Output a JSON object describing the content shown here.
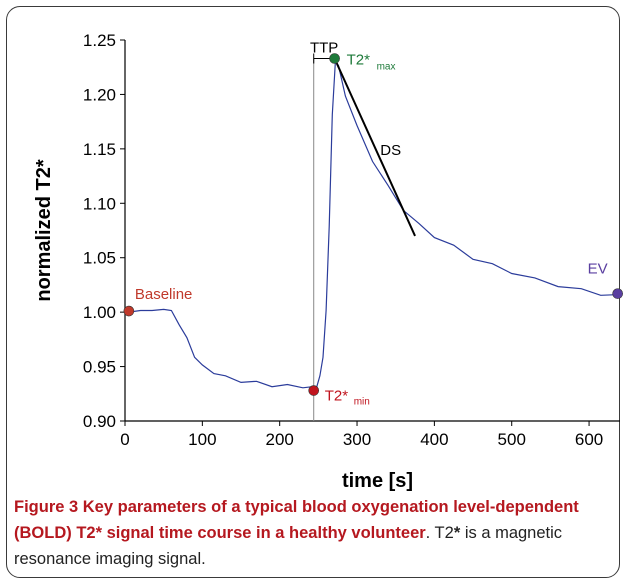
{
  "chart_data": {
    "type": "line",
    "xlabel": "time [s]",
    "ylabel": "normalized T2*",
    "xlim": [
      0,
      640
    ],
    "ylim": [
      0.9,
      1.25
    ],
    "xticks": [
      "0",
      "100",
      "200",
      "300",
      "400",
      "500",
      "600"
    ],
    "yticks": [
      "0.90",
      "0.95",
      "1.00",
      "1.05",
      "1.10",
      "1.15",
      "1.20",
      "1.25"
    ],
    "grid": false,
    "colors": {
      "signal": "#2b3c9b",
      "baseline": "#c0392b",
      "t2max": "#1e7a3a",
      "t2min": "#c0141e",
      "ev": "#5a3fa0",
      "ds_line": "#000000",
      "caption_title": "#b5181f"
    },
    "series": [
      {
        "values": [
          [
            5,
            1.0
          ],
          [
            20,
            1.003
          ],
          [
            35,
            1.0
          ],
          [
            50,
            1.004
          ],
          [
            60,
            1.0
          ],
          [
            70,
            0.99
          ],
          [
            80,
            0.975
          ],
          [
            90,
            0.96
          ],
          [
            100,
            0.95
          ],
          [
            115,
            0.945
          ],
          [
            130,
            0.94
          ],
          [
            150,
            0.937
          ],
          [
            170,
            0.935
          ],
          [
            190,
            0.933
          ],
          [
            210,
            0.932
          ],
          [
            230,
            0.932
          ],
          [
            242,
            0.93
          ],
          [
            248,
            0.933
          ],
          [
            252,
            0.94
          ],
          [
            256,
            0.96
          ],
          [
            260,
            1.0
          ],
          [
            264,
            1.08
          ],
          [
            268,
            1.18
          ],
          [
            272,
            1.232
          ],
          [
            276,
            1.225
          ],
          [
            285,
            1.2
          ],
          [
            300,
            1.17
          ],
          [
            320,
            1.14
          ],
          [
            340,
            1.115
          ],
          [
            360,
            1.095
          ],
          [
            380,
            1.08
          ],
          [
            400,
            1.07
          ],
          [
            425,
            1.06
          ],
          [
            450,
            1.05
          ],
          [
            475,
            1.043
          ],
          [
            500,
            1.037
          ],
          [
            530,
            1.03
          ],
          [
            560,
            1.025
          ],
          [
            590,
            1.02
          ],
          [
            615,
            1.017
          ],
          [
            635,
            1.016
          ]
        ]
      }
    ],
    "markers": [
      {
        "label": "Baseline",
        "x": 5,
        "y": 1.001
      },
      {
        "label": "T2*",
        "sub": "min",
        "x": 244,
        "y": 0.928
      },
      {
        "label": "T2*",
        "sub": "max",
        "x": 271,
        "y": 1.233
      },
      {
        "label": "EV",
        "x": 637,
        "y": 1.017
      }
    ],
    "annotations": {
      "ttp": {
        "label": "TTP",
        "x_start": 244,
        "x_end": 271,
        "y": 1.233
      },
      "ds": {
        "label": "DS",
        "x_start": 271,
        "y_start": 1.233,
        "x_end": 375,
        "y_end": 1.07
      }
    }
  },
  "caption": {
    "title": "Figure 3 Key parameters of a typical blood oxygenation level-dependent (BOLD) T2* signal time course in a healthy volunteer",
    "text_pre": ". T2",
    "text_bold": "*",
    "text_post": " is a magnetic resonance imaging signal."
  }
}
